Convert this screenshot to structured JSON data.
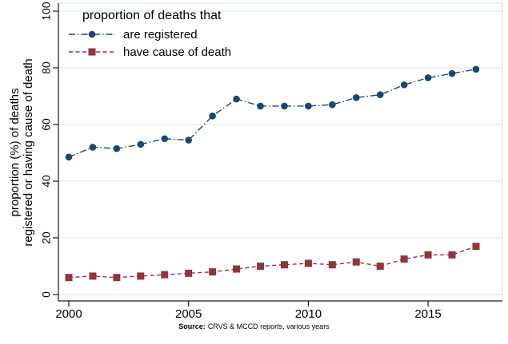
{
  "figure": {
    "background": "#ffffff",
    "source_note": {
      "label": "Source:",
      "text": "CRVS & MCCD reports, various years"
    }
  },
  "chart_data": {
    "type": "line",
    "title": "",
    "xlabel": "",
    "y_label_lines": [
      "proportion (%) of deaths",
      "registered or having cause of death"
    ],
    "legend": {
      "title": "proportion of deaths that",
      "position": "top-left",
      "border": false
    },
    "x": [
      2000,
      2001,
      2002,
      2003,
      2004,
      2005,
      2006,
      2007,
      2008,
      2009,
      2010,
      2011,
      2012,
      2013,
      2014,
      2015,
      2016,
      2017
    ],
    "xticks": [
      2000,
      2005,
      2010,
      2015
    ],
    "yticks": [
      0,
      20,
      40,
      60,
      80,
      100
    ],
    "xlim": [
      2000,
      2017
    ],
    "ylim": [
      0,
      100
    ],
    "grid": true,
    "grid_color": "#dce3e6",
    "axis_color": "#1a1a1a",
    "series": [
      {
        "name": "are registered",
        "color": "#1a476f",
        "marker": "circle",
        "line_style": "dash-dot",
        "values": [
          48.5,
          52,
          51.5,
          53,
          55,
          54.5,
          63,
          69,
          66.5,
          66.5,
          66.5,
          67,
          69.5,
          70.5,
          74,
          76.5,
          78,
          79.5
        ]
      },
      {
        "name": "have cause of death",
        "color": "#90353b",
        "marker": "square",
        "line_style": "dashed",
        "values": [
          6,
          6.5,
          6,
          6.5,
          7,
          7.5,
          8,
          9,
          10,
          10.5,
          11,
          10.5,
          11.5,
          10,
          12.5,
          14,
          14,
          17
        ]
      }
    ]
  }
}
